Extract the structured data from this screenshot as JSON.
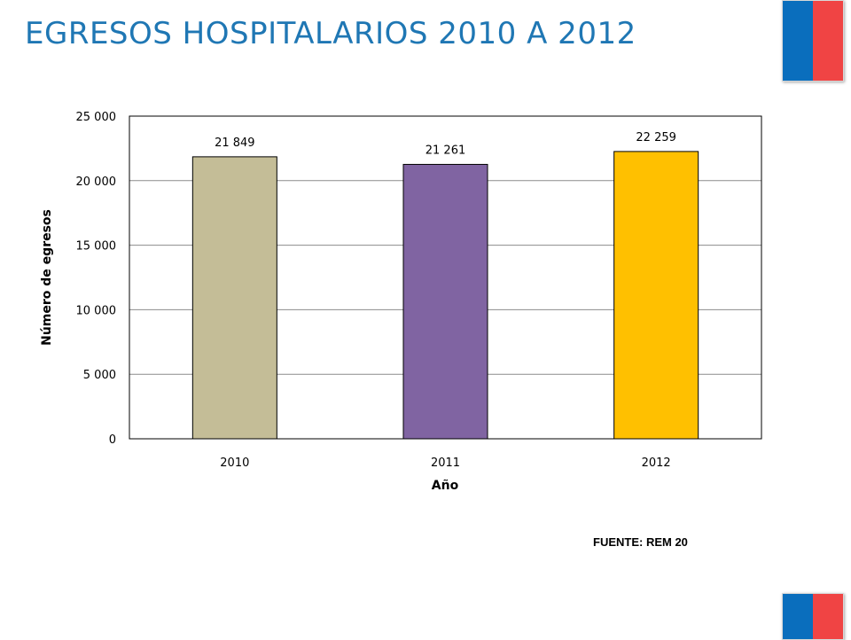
{
  "slide": {
    "title": "EGRESOS HOSPITALARIOS 2010 A 2012",
    "source": "FUENTE: REM 20"
  },
  "colors": {
    "title": "#1f77b4",
    "flag_blue": "#0a6ebd",
    "flag_red": "#f04444"
  },
  "chart_data": {
    "type": "bar",
    "categories": [
      "2010",
      "2011",
      "2012"
    ],
    "values": [
      21849,
      21261,
      22259
    ],
    "data_labels": [
      "21 849",
      "21 261",
      "22 259"
    ],
    "bar_colors": [
      "#c4bd97",
      "#8064a2",
      "#ffc000"
    ],
    "xlabel": "Año",
    "ylabel": "Número de egresos",
    "ylim": [
      0,
      25000
    ],
    "yticks": [
      0,
      5000,
      10000,
      15000,
      20000,
      25000
    ],
    "ytick_labels": [
      "0",
      "5 000",
      "10 000",
      "15 000",
      "20 000",
      "25 000"
    ],
    "grid": true,
    "legend": "none"
  }
}
